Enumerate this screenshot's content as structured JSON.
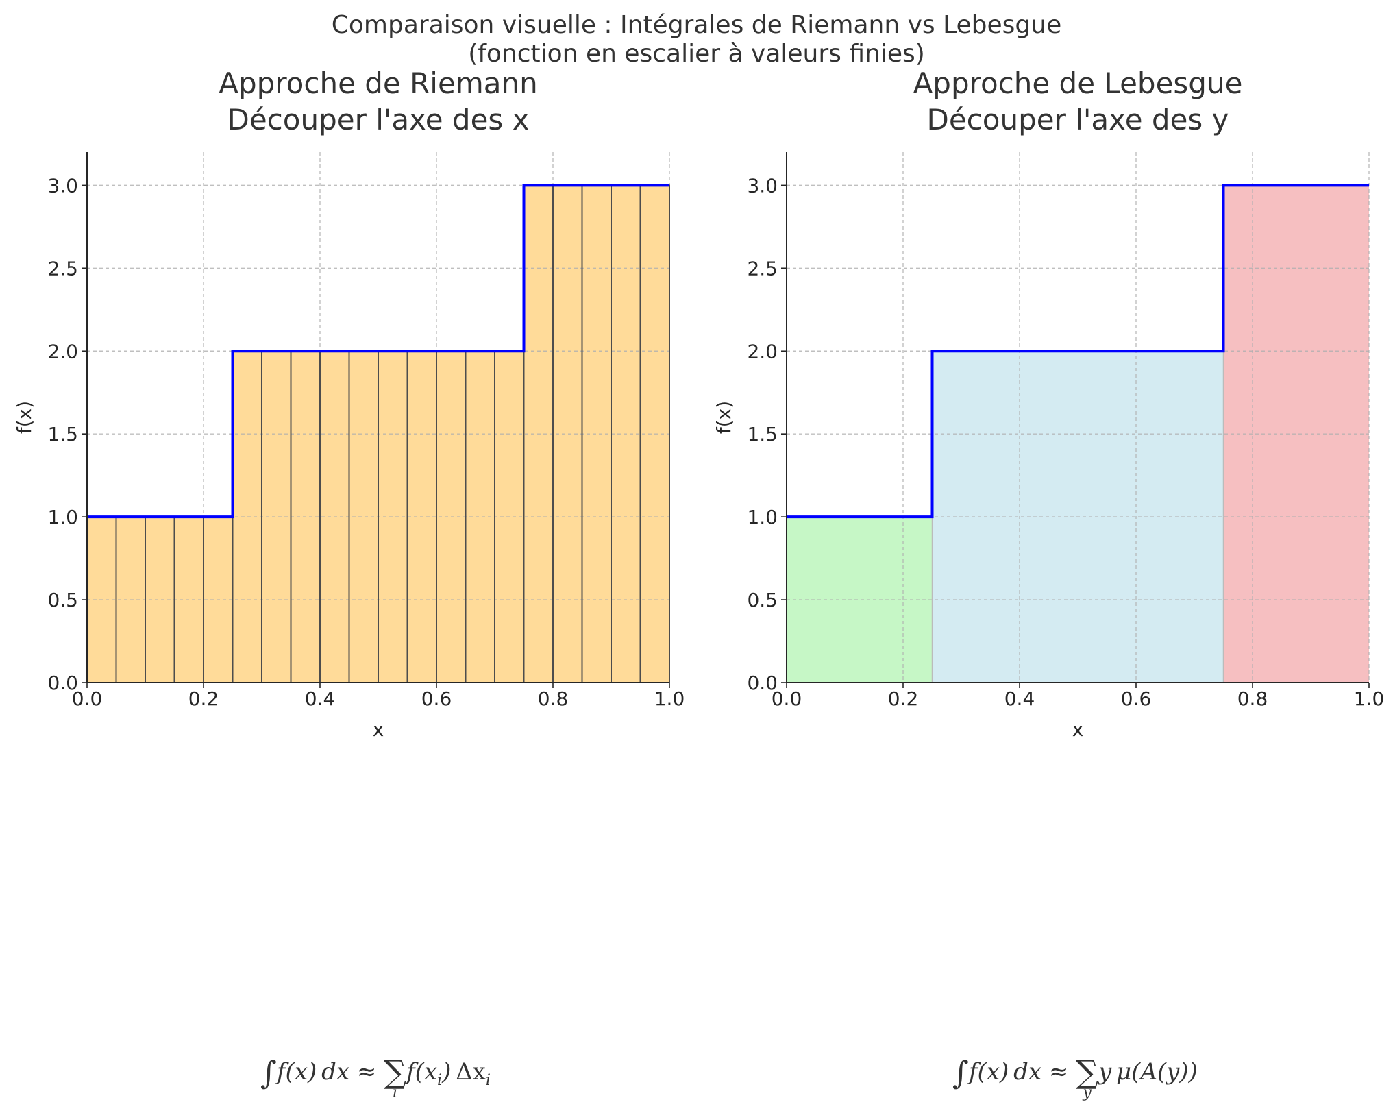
{
  "figure": {
    "suptitle_line1": "Comparaison visuelle : Intégrales de Riemann vs Lebesgue",
    "suptitle_line2": "(fonction en escalier à valeurs finies)"
  },
  "chart_data": [
    {
      "type": "line",
      "title_line1": "Approche de Riemann",
      "title_line2": "Découper l'axe des x",
      "xlabel": "x",
      "ylabel": "f(x)",
      "xlim": [
        0.0,
        1.0
      ],
      "ylim": [
        0.0,
        3.2
      ],
      "xticks": [
        "0.0",
        "0.2",
        "0.4",
        "0.6",
        "0.8",
        "1.0"
      ],
      "yticks": [
        "0.0",
        "0.5",
        "1.0",
        "1.5",
        "2.0",
        "2.5",
        "3.0"
      ],
      "grid": true,
      "step_function": {
        "x": [
          0.0,
          0.25,
          0.25,
          0.75,
          0.75,
          1.0
        ],
        "y": [
          1.0,
          1.0,
          2.0,
          2.0,
          3.0,
          3.0
        ],
        "color": "#0000ff"
      },
      "riemann_bars": {
        "x_start": [
          0.0,
          0.05,
          0.1,
          0.15,
          0.2,
          0.25,
          0.3,
          0.35,
          0.4,
          0.45,
          0.5,
          0.55,
          0.6,
          0.65,
          0.7,
          0.75,
          0.8,
          0.85,
          0.9,
          0.95
        ],
        "width": 0.05,
        "heights": [
          1,
          1,
          1,
          1,
          1,
          2,
          2,
          2,
          2,
          2,
          2,
          2,
          2,
          2,
          2,
          3,
          3,
          3,
          3,
          3
        ],
        "color": "#ffdb99",
        "edge_color": "#4d4d4d"
      },
      "formula": {
        "integral": "∫",
        "fx": "f(x)",
        "dx": "dx",
        "approx": "≈",
        "sum": "∑",
        "sum_index": "i",
        "term_f": "f(x",
        "term_sub": "i",
        "term_close": ")",
        "delta": "Δx",
        "delta_sub": "i"
      }
    },
    {
      "type": "area",
      "title_line1": "Approche de Lebesgue",
      "title_line2": "Découper l'axe des y",
      "xlabel": "x",
      "ylabel": "f(x)",
      "xlim": [
        0.0,
        1.0
      ],
      "ylim": [
        0.0,
        3.2
      ],
      "xticks": [
        "0.0",
        "0.2",
        "0.4",
        "0.6",
        "0.8",
        "1.0"
      ],
      "yticks": [
        "0.0",
        "0.5",
        "1.0",
        "1.5",
        "2.0",
        "2.5",
        "3.0"
      ],
      "grid": true,
      "step_function": {
        "x": [
          0.0,
          0.25,
          0.25,
          0.75,
          0.75,
          1.0
        ],
        "y": [
          1.0,
          1.0,
          2.0,
          2.0,
          3.0,
          3.0
        ],
        "color": "#0000ff"
      },
      "level_regions": [
        {
          "x_from": 0.0,
          "x_to": 0.25,
          "y": 1.0,
          "color": "#c6f7c6"
        },
        {
          "x_from": 0.25,
          "x_to": 0.75,
          "y": 2.0,
          "color": "#d4ebf2"
        },
        {
          "x_from": 0.75,
          "x_to": 1.0,
          "y": 3.0,
          "color": "#f6bfc1"
        }
      ],
      "formula": {
        "integral": "∫",
        "fx": "f(x)",
        "dx": "dx",
        "approx": "≈",
        "sum": "∑",
        "sum_index": "y",
        "term": "y",
        "mu": "μ(A(y))"
      }
    }
  ]
}
